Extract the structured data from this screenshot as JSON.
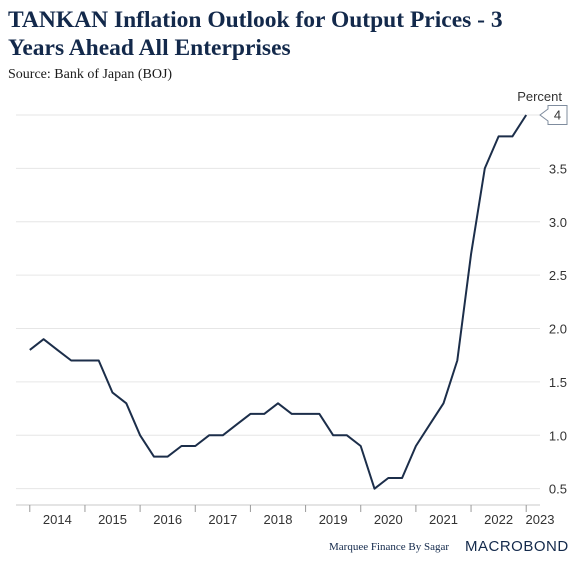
{
  "header": {
    "title": "TANKAN Inflation Outlook for Output Prices - 3 Years Ahead All Enterprises",
    "subtitle": "Source: Bank of Japan (BOJ)"
  },
  "footer": {
    "credit": "Marquee Finance By Sagar",
    "brand": "MACROBOND"
  },
  "colors": {
    "line": "#1c2e4a",
    "title": "#13294b",
    "grid": "#e6e6e6"
  },
  "chart_data": {
    "type": "line",
    "title": "TANKAN Inflation Outlook for Output Prices - 3 Years Ahead All Enterprises",
    "ylabel": "Percent",
    "xlabel": "",
    "ylim": [
      0.45,
      4.0
    ],
    "y_ticks": [
      0.5,
      1.0,
      1.5,
      2.0,
      2.5,
      3.0,
      3.5
    ],
    "y_tick_labels": [
      "0.5",
      "1.0",
      "1.5",
      "2.0",
      "2.5",
      "3.0",
      "3.5"
    ],
    "x_range": [
      2013.75,
      2023.25
    ],
    "x_tick_labels": [
      "2014",
      "2015",
      "2016",
      "2017",
      "2018",
      "2019",
      "2020",
      "2021",
      "2022",
      "2023"
    ],
    "grid": true,
    "legend": "none",
    "last_value_label": "4",
    "series": [
      {
        "x": [
          "2014-Q1",
          "2014-Q2",
          "2014-Q3",
          "2014-Q4",
          "2015-Q1",
          "2015-Q2",
          "2015-Q3",
          "2015-Q4",
          "2016-Q1",
          "2016-Q2",
          "2016-Q3",
          "2016-Q4",
          "2017-Q1",
          "2017-Q2",
          "2017-Q3",
          "2017-Q4",
          "2018-Q1",
          "2018-Q2",
          "2018-Q3",
          "2018-Q4",
          "2019-Q1",
          "2019-Q2",
          "2019-Q3",
          "2019-Q4",
          "2020-Q1",
          "2020-Q2",
          "2020-Q3",
          "2020-Q4",
          "2021-Q1",
          "2021-Q2",
          "2021-Q3",
          "2021-Q4",
          "2022-Q1",
          "2022-Q2",
          "2022-Q3",
          "2022-Q4",
          "2023-Q1"
        ],
        "values": [
          1.8,
          1.9,
          1.8,
          1.7,
          1.7,
          1.7,
          1.4,
          1.3,
          1.0,
          0.8,
          0.8,
          0.9,
          0.9,
          1.0,
          1.0,
          1.1,
          1.2,
          1.2,
          1.3,
          1.2,
          1.2,
          1.2,
          1.0,
          1.0,
          0.9,
          0.5,
          0.6,
          0.6,
          0.9,
          1.1,
          1.3,
          1.7,
          2.7,
          3.5,
          3.8,
          3.8,
          4.0
        ]
      }
    ]
  }
}
